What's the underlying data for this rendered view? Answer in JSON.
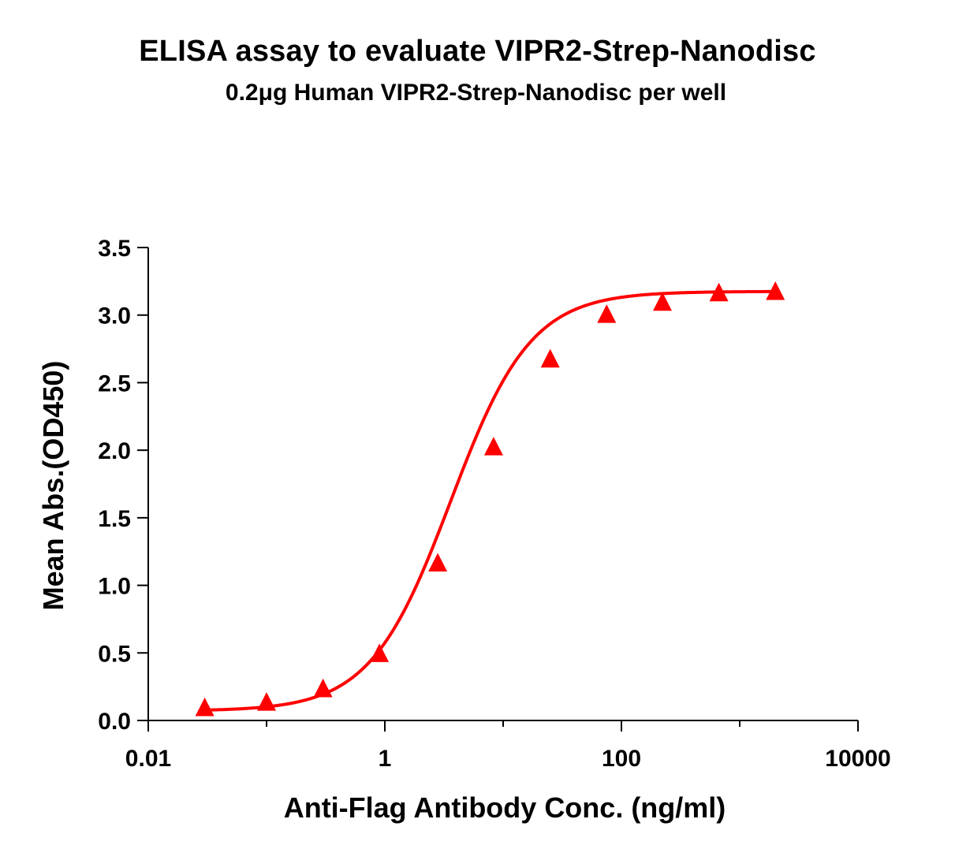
{
  "chart_data": {
    "type": "scatter",
    "title": "ELISA assay to evaluate VIPR2-Strep-Nanodisc",
    "subtitle": "0.2μg Human VIPR2-Strep-Nanodisc per well",
    "xlabel": "Anti-Flag Antibody Conc. (ng/ml)",
    "ylabel": "Mean Abs.(OD450)",
    "x_scale": "log",
    "xlim": [
      0.01,
      10000
    ],
    "ylim": [
      0,
      3.5
    ],
    "x_ticks": [
      0.01,
      1,
      100,
      10000
    ],
    "x_tick_labels": [
      "0.01",
      "1",
      "100",
      "10000"
    ],
    "y_ticks": [
      0,
      0.5,
      1,
      1.5,
      2,
      2.5,
      3,
      3.5
    ],
    "y_tick_labels": [
      "0.0",
      "0.5",
      "1.0",
      "1.5",
      "2.0",
      "2.5",
      "3.0",
      "3.5"
    ],
    "grid": false,
    "legend": "none",
    "series": [
      {
        "marker": "triangle",
        "color": "#ff0000",
        "fit": "4PL",
        "x": [
          0.03,
          0.1,
          0.3,
          0.9,
          2.8,
          8.3,
          25,
          75,
          222,
          667,
          2000
        ],
        "y": [
          0.09,
          0.13,
          0.23,
          0.49,
          1.16,
          2.02,
          2.67,
          3.0,
          3.09,
          3.16,
          3.17
        ]
      }
    ]
  }
}
